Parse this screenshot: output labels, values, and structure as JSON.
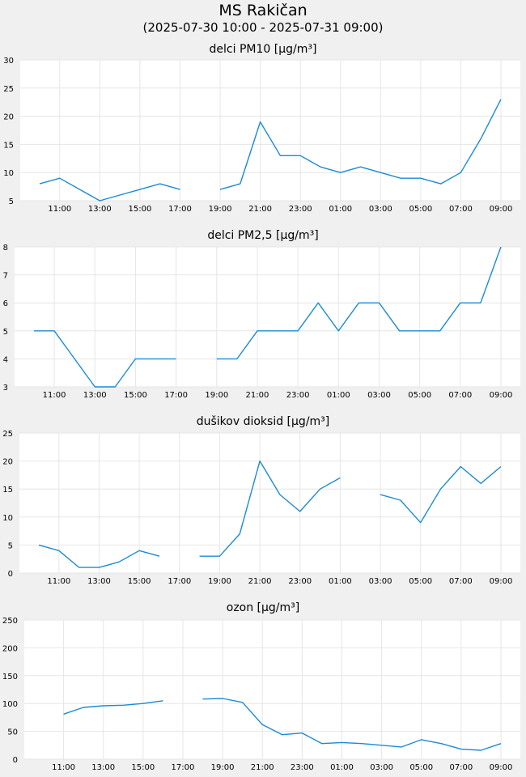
{
  "header": {
    "title": "MS Rakičan",
    "subtitle": "(2025-07-30 10:00 - 2025-07-31 09:00)"
  },
  "colors": {
    "line": "#1a8bd6",
    "plot_bg": "#ffffff",
    "grid": "#e6e6e6",
    "page_bg": "#f0f0f0"
  },
  "chart_data": [
    {
      "type": "line",
      "title": "delci PM10 [µg/m³]",
      "x": [
        "10:00",
        "11:00",
        "12:00",
        "13:00",
        "14:00",
        "15:00",
        "16:00",
        "17:00",
        "18:00",
        "19:00",
        "20:00",
        "21:00",
        "22:00",
        "23:00",
        "00:00",
        "01:00",
        "02:00",
        "03:00",
        "04:00",
        "05:00",
        "06:00",
        "07:00",
        "08:00",
        "09:00"
      ],
      "x_tick_labels": [
        "11:00",
        "13:00",
        "15:00",
        "17:00",
        "19:00",
        "21:00",
        "23:00",
        "01:00",
        "03:00",
        "05:00",
        "07:00",
        "09:00"
      ],
      "series": [
        {
          "values": [
            8,
            9,
            7,
            5,
            6,
            7,
            8,
            7,
            null,
            7,
            8,
            19,
            13,
            13,
            11,
            10,
            11,
            10,
            9,
            9,
            8,
            10,
            16,
            23
          ]
        }
      ],
      "ylim": [
        5,
        30
      ],
      "y_ticks": [
        5,
        10,
        15,
        20,
        25,
        30
      ],
      "grid": true
    },
    {
      "type": "line",
      "title": "delci PM2,5 [µg/m³]",
      "x": [
        "10:00",
        "11:00",
        "12:00",
        "13:00",
        "14:00",
        "15:00",
        "16:00",
        "17:00",
        "18:00",
        "19:00",
        "20:00",
        "21:00",
        "22:00",
        "23:00",
        "00:00",
        "01:00",
        "02:00",
        "03:00",
        "04:00",
        "05:00",
        "06:00",
        "07:00",
        "08:00",
        "09:00"
      ],
      "x_tick_labels": [
        "11:00",
        "13:00",
        "15:00",
        "17:00",
        "19:00",
        "21:00",
        "23:00",
        "01:00",
        "03:00",
        "05:00",
        "07:00",
        "09:00"
      ],
      "series": [
        {
          "values": [
            5,
            5,
            4,
            3,
            3,
            4,
            4,
            4,
            null,
            4,
            4,
            5,
            5,
            5,
            6,
            5,
            6,
            6,
            5,
            5,
            5,
            6,
            6,
            8
          ]
        }
      ],
      "ylim": [
        3,
        8
      ],
      "y_ticks": [
        3,
        4,
        5,
        6,
        7,
        8
      ],
      "grid": true
    },
    {
      "type": "line",
      "title": "dušikov dioksid [µg/m³]",
      "x": [
        "10:00",
        "11:00",
        "12:00",
        "13:00",
        "14:00",
        "15:00",
        "16:00",
        "17:00",
        "18:00",
        "19:00",
        "20:00",
        "21:00",
        "22:00",
        "23:00",
        "00:00",
        "01:00",
        "02:00",
        "03:00",
        "04:00",
        "05:00",
        "06:00",
        "07:00",
        "08:00",
        "09:00"
      ],
      "x_tick_labels": [
        "11:00",
        "13:00",
        "15:00",
        "17:00",
        "19:00",
        "21:00",
        "23:00",
        "01:00",
        "03:00",
        "05:00",
        "07:00",
        "09:00"
      ],
      "series": [
        {
          "values": [
            5,
            4,
            1,
            1,
            2,
            4,
            3,
            null,
            3,
            3,
            7,
            20,
            14,
            11,
            15,
            17,
            null,
            14,
            13,
            9,
            15,
            19,
            16,
            19
          ]
        }
      ],
      "ylim": [
        0,
        25
      ],
      "y_ticks": [
        0,
        5,
        10,
        15,
        20,
        25
      ],
      "grid": true
    },
    {
      "type": "line",
      "title": "ozon [µg/m³]",
      "x": [
        "10:00",
        "11:00",
        "12:00",
        "13:00",
        "14:00",
        "15:00",
        "16:00",
        "17:00",
        "18:00",
        "19:00",
        "20:00",
        "21:00",
        "22:00",
        "23:00",
        "00:00",
        "01:00",
        "02:00",
        "03:00",
        "04:00",
        "05:00",
        "06:00",
        "07:00",
        "08:00",
        "09:00"
      ],
      "x_tick_labels": [
        "11:00",
        "13:00",
        "15:00",
        "17:00",
        "19:00",
        "21:00",
        "23:00",
        "01:00",
        "03:00",
        "05:00",
        "07:00",
        "09:00"
      ],
      "series": [
        {
          "values": [
            null,
            81,
            93,
            96,
            97,
            100,
            105,
            null,
            108,
            109,
            102,
            62,
            44,
            47,
            28,
            30,
            28,
            25,
            22,
            35,
            28,
            18,
            16,
            28
          ]
        }
      ],
      "ylim": [
        0,
        250
      ],
      "y_ticks": [
        0,
        50,
        100,
        150,
        200,
        250
      ],
      "grid": true
    }
  ]
}
